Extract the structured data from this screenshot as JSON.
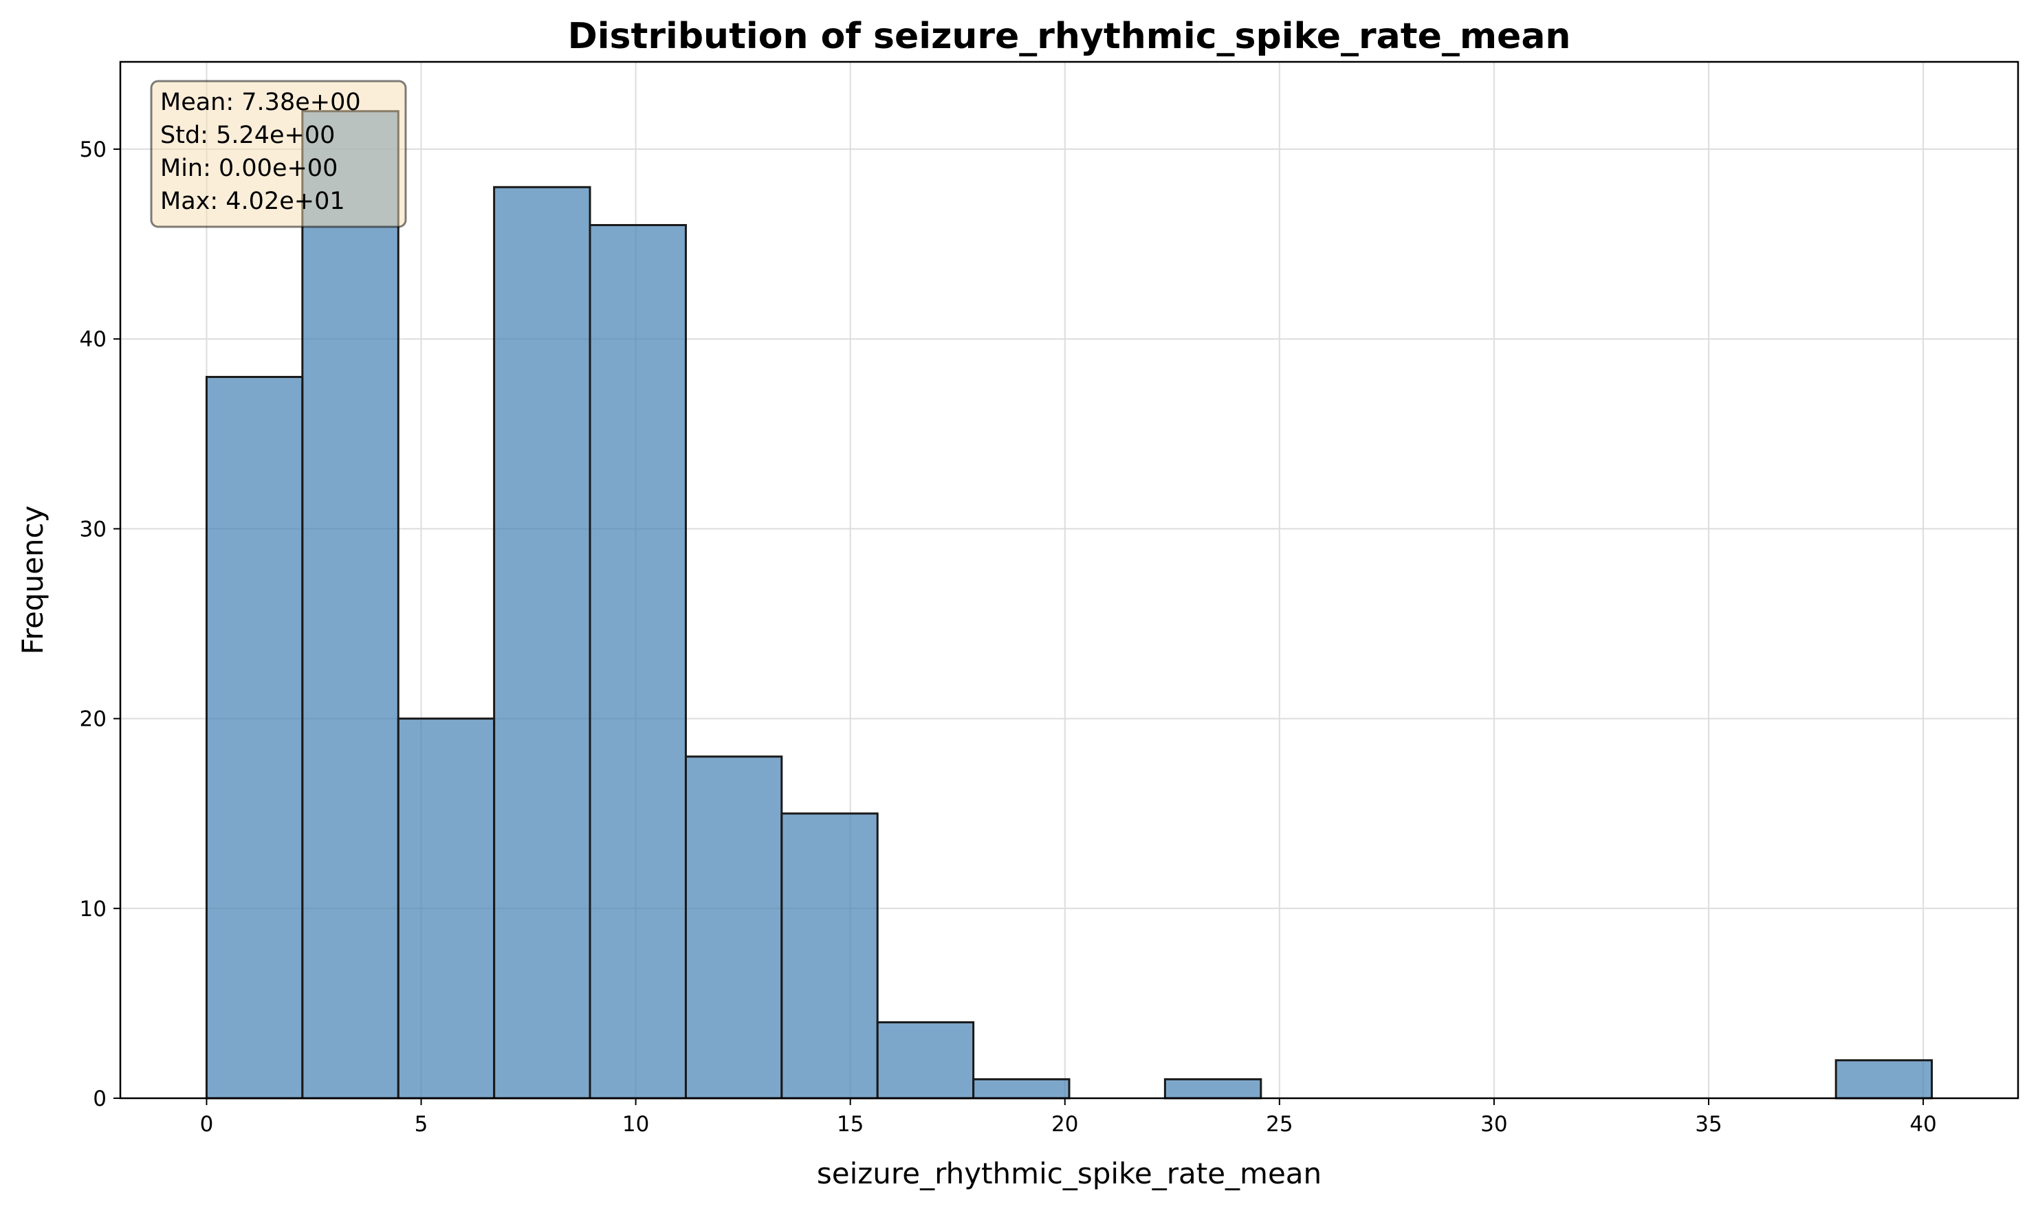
{
  "chart_data": {
    "type": "bar",
    "title": "Distribution of seizure_rhythmic_spike_rate_mean",
    "xlabel": "seizure_rhythmic_spike_rate_mean",
    "ylabel": "Frequency",
    "xlim": [
      -2.01,
      42.21
    ],
    "ylim": [
      0,
      54.6
    ],
    "xticks": [
      0,
      5,
      10,
      15,
      20,
      25,
      30,
      35,
      40
    ],
    "yticks": [
      0,
      10,
      20,
      30,
      40,
      50
    ],
    "grid": true,
    "bin_edges": [
      0.0,
      2.233,
      4.467,
      6.7,
      8.933,
      11.167,
      13.4,
      15.633,
      17.867,
      20.1,
      22.333,
      24.567,
      26.8,
      29.033,
      31.267,
      33.5,
      35.733,
      37.967,
      40.2
    ],
    "values": [
      38,
      52,
      20,
      48,
      46,
      18,
      15,
      4,
      1,
      0,
      1,
      0,
      0,
      0,
      0,
      0,
      0,
      2
    ],
    "bar_color": "#4682b4",
    "bar_edge_color": "#1a1a1a",
    "stats_box": {
      "placement": "top-left",
      "lines": [
        "Mean: 7.38e+00",
        "Std: 5.24e+00",
        "Min: 0.00e+00",
        "Max: 4.02e+01"
      ],
      "background": "#f5deb3"
    }
  }
}
